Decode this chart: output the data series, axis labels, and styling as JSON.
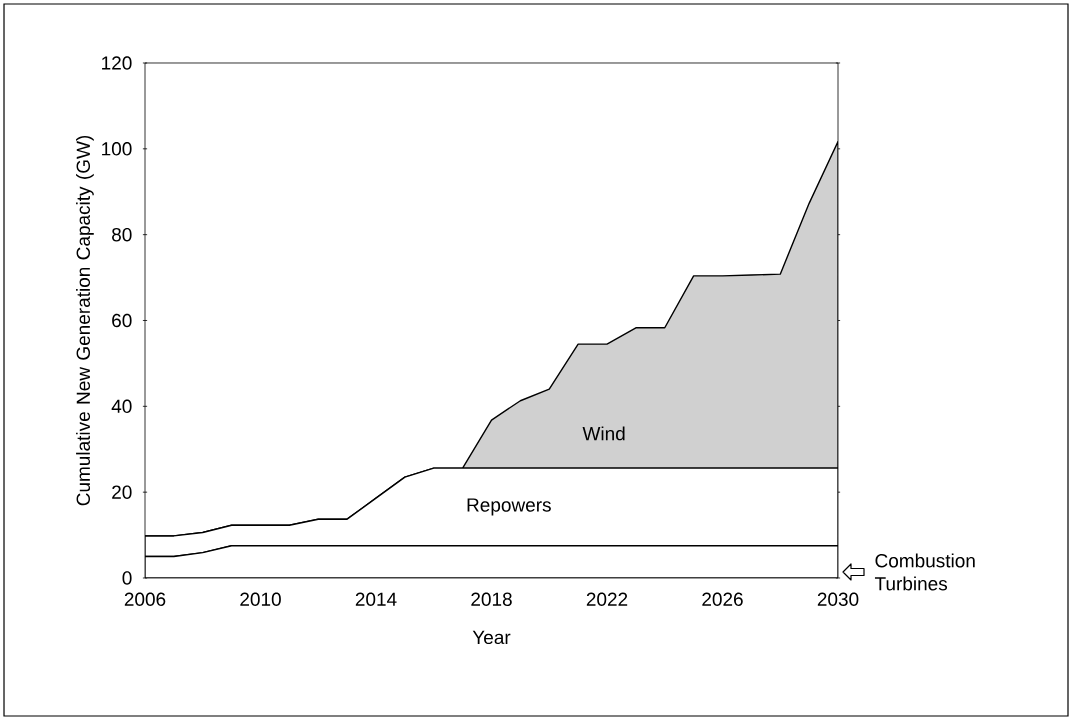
{
  "chart_data": {
    "type": "area",
    "stacked": true,
    "xlabel": "Year",
    "ylabel": "Cumulative New Generation Capacity (GW)",
    "x": [
      2006,
      2007,
      2008,
      2009,
      2010,
      2011,
      2012,
      2013,
      2014,
      2015,
      2016,
      2017,
      2018,
      2019,
      2020,
      2021,
      2022,
      2023,
      2024,
      2025,
      2026,
      2027,
      2028,
      2029,
      2030
    ],
    "series": [
      {
        "name": "Combustion Turbines",
        "color": "#ffffff",
        "values": [
          5.0,
          5.0,
          5.9,
          7.5,
          7.5,
          7.5,
          7.5,
          7.5,
          7.5,
          7.5,
          7.5,
          7.5,
          7.5,
          7.5,
          7.5,
          7.5,
          7.5,
          7.5,
          7.5,
          7.5,
          7.5,
          7.5,
          7.5,
          7.5,
          7.5
        ]
      },
      {
        "name": "Repowers",
        "color": "#ffffff",
        "values": [
          4.8,
          4.8,
          4.7,
          4.8,
          4.8,
          4.8,
          6.2,
          6.2,
          11.1,
          16.0,
          18.1,
          18.1,
          18.1,
          18.1,
          18.1,
          18.1,
          18.1,
          18.1,
          18.1,
          18.1,
          18.1,
          18.1,
          18.1,
          18.1,
          18.1
        ]
      },
      {
        "name": "Wind",
        "color": "#d0d0d0",
        "values": [
          0,
          0,
          0,
          0,
          0,
          0,
          0,
          0,
          0,
          0,
          0,
          0,
          11.2,
          15.7,
          18.4,
          28.9,
          28.9,
          32.7,
          32.7,
          44.8,
          44.8,
          45.0,
          45.2,
          61.7,
          76.1
        ]
      }
    ],
    "xlim": [
      2006,
      2030
    ],
    "ylim": [
      0,
      120
    ],
    "xticks": [
      2006,
      2010,
      2014,
      2018,
      2022,
      2026,
      2030
    ],
    "yticks": [
      0,
      20,
      40,
      60,
      80,
      100,
      120
    ]
  }
}
